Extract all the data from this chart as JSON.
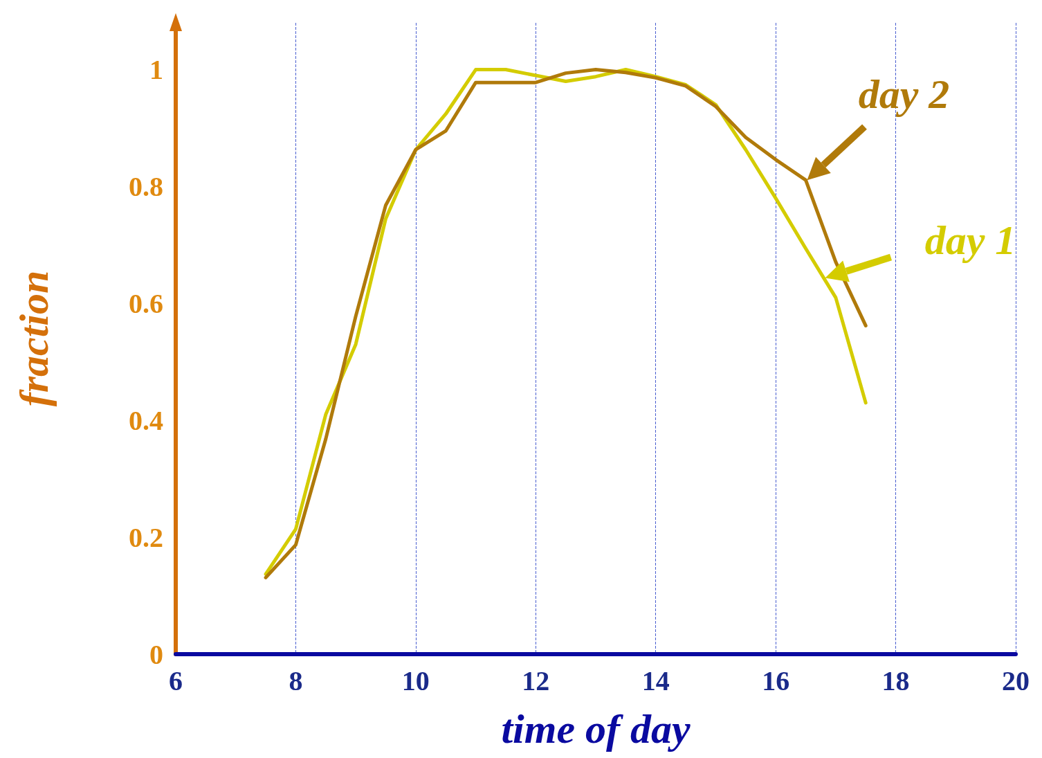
{
  "chart_data": {
    "type": "line",
    "xlabel": "time of day",
    "ylabel": "fraction",
    "xlim": [
      6,
      20
    ],
    "xticks": [
      6,
      8,
      10,
      12,
      14,
      16,
      18,
      20
    ],
    "ylim": [
      0,
      1.08
    ],
    "yticks": [
      0,
      0.2,
      0.4,
      0.6,
      0.8,
      1
    ],
    "grid": "x",
    "marker": "none",
    "line_style": "solid",
    "x": [
      7.5,
      8,
      8.5,
      9,
      9.5,
      10,
      10.5,
      11,
      11.5,
      12,
      12.5,
      13,
      13.5,
      14,
      14.5,
      15,
      15.5,
      16,
      16.5,
      17,
      17.5
    ],
    "series": [
      {
        "name": "day 1",
        "color": "#d4cc00",
        "values": [
          0.137,
          0.214,
          0.41,
          0.53,
          0.745,
          0.863,
          0.924,
          1.0,
          1.0,
          0.99,
          0.98,
          0.988,
          1.0,
          0.988,
          0.974,
          0.94,
          0.863,
          0.78,
          0.694,
          0.61,
          0.43
        ]
      },
      {
        "name": "day 2",
        "color": "#b07a0a",
        "values": [
          0.131,
          0.187,
          0.368,
          0.578,
          0.768,
          0.863,
          0.895,
          0.978,
          0.978,
          0.978,
          0.994,
          1.0,
          0.995,
          0.986,
          0.972,
          0.937,
          0.884,
          0.846,
          0.811,
          0.671,
          0.562
        ]
      }
    ]
  }
}
